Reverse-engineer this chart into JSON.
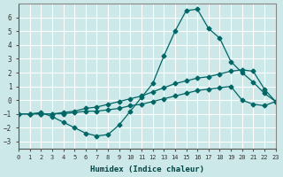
{
  "xlabel": "Humidex (Indice chaleur)",
  "bg_color": "#cce8e8",
  "grid_color": "#ffffff",
  "line_color": "#006666",
  "xlim": [
    0,
    23
  ],
  "ylim": [
    -3.5,
    7
  ],
  "yticks": [
    -3,
    -2,
    -1,
    0,
    1,
    2,
    3,
    4,
    5,
    6
  ],
  "xticks": [
    0,
    1,
    2,
    3,
    4,
    5,
    6,
    7,
    8,
    9,
    10,
    11,
    12,
    13,
    14,
    15,
    16,
    17,
    18,
    19,
    20,
    21,
    22,
    23
  ],
  "line1_x": [
    0,
    1,
    2,
    3,
    4,
    5,
    6,
    7,
    8,
    9,
    10,
    11,
    12,
    13,
    14,
    15,
    16,
    17,
    18,
    19,
    20,
    21,
    22,
    23
  ],
  "line1_y": [
    -1,
    -1,
    -0.9,
    -1.2,
    -1.6,
    -2.0,
    -2.4,
    -2.6,
    -2.5,
    -1.8,
    -0.8,
    0.2,
    1.2,
    3.2,
    5.0,
    6.5,
    6.6,
    5.2,
    4.5,
    2.8,
    2.0,
    1.3,
    0.5,
    -0.1
  ],
  "line2_x": [
    0,
    1,
    2,
    3,
    4,
    5,
    6,
    7,
    8,
    9,
    10,
    11,
    12,
    13,
    14,
    15,
    16,
    17,
    18,
    19,
    20,
    21,
    22,
    23
  ],
  "line2_y": [
    -1,
    -1,
    -1,
    -1,
    -0.9,
    -0.8,
    -0.6,
    -0.5,
    -0.3,
    -0.1,
    0.1,
    0.3,
    0.6,
    0.9,
    1.2,
    1.4,
    1.6,
    1.7,
    1.9,
    2.1,
    2.2,
    2.1,
    0.8,
    -0.1
  ],
  "line3_x": [
    0,
    1,
    2,
    3,
    4,
    5,
    6,
    7,
    8,
    9,
    10,
    11,
    12,
    13,
    14,
    15,
    16,
    17,
    18,
    19,
    20,
    21,
    22,
    23
  ],
  "line3_y": [
    -1,
    -1,
    -1,
    -1,
    -1,
    -0.9,
    -0.8,
    -0.8,
    -0.7,
    -0.6,
    -0.4,
    -0.3,
    -0.1,
    0.1,
    0.3,
    0.5,
    0.7,
    0.8,
    0.9,
    1.0,
    0.0,
    -0.3,
    -0.4,
    -0.1
  ]
}
